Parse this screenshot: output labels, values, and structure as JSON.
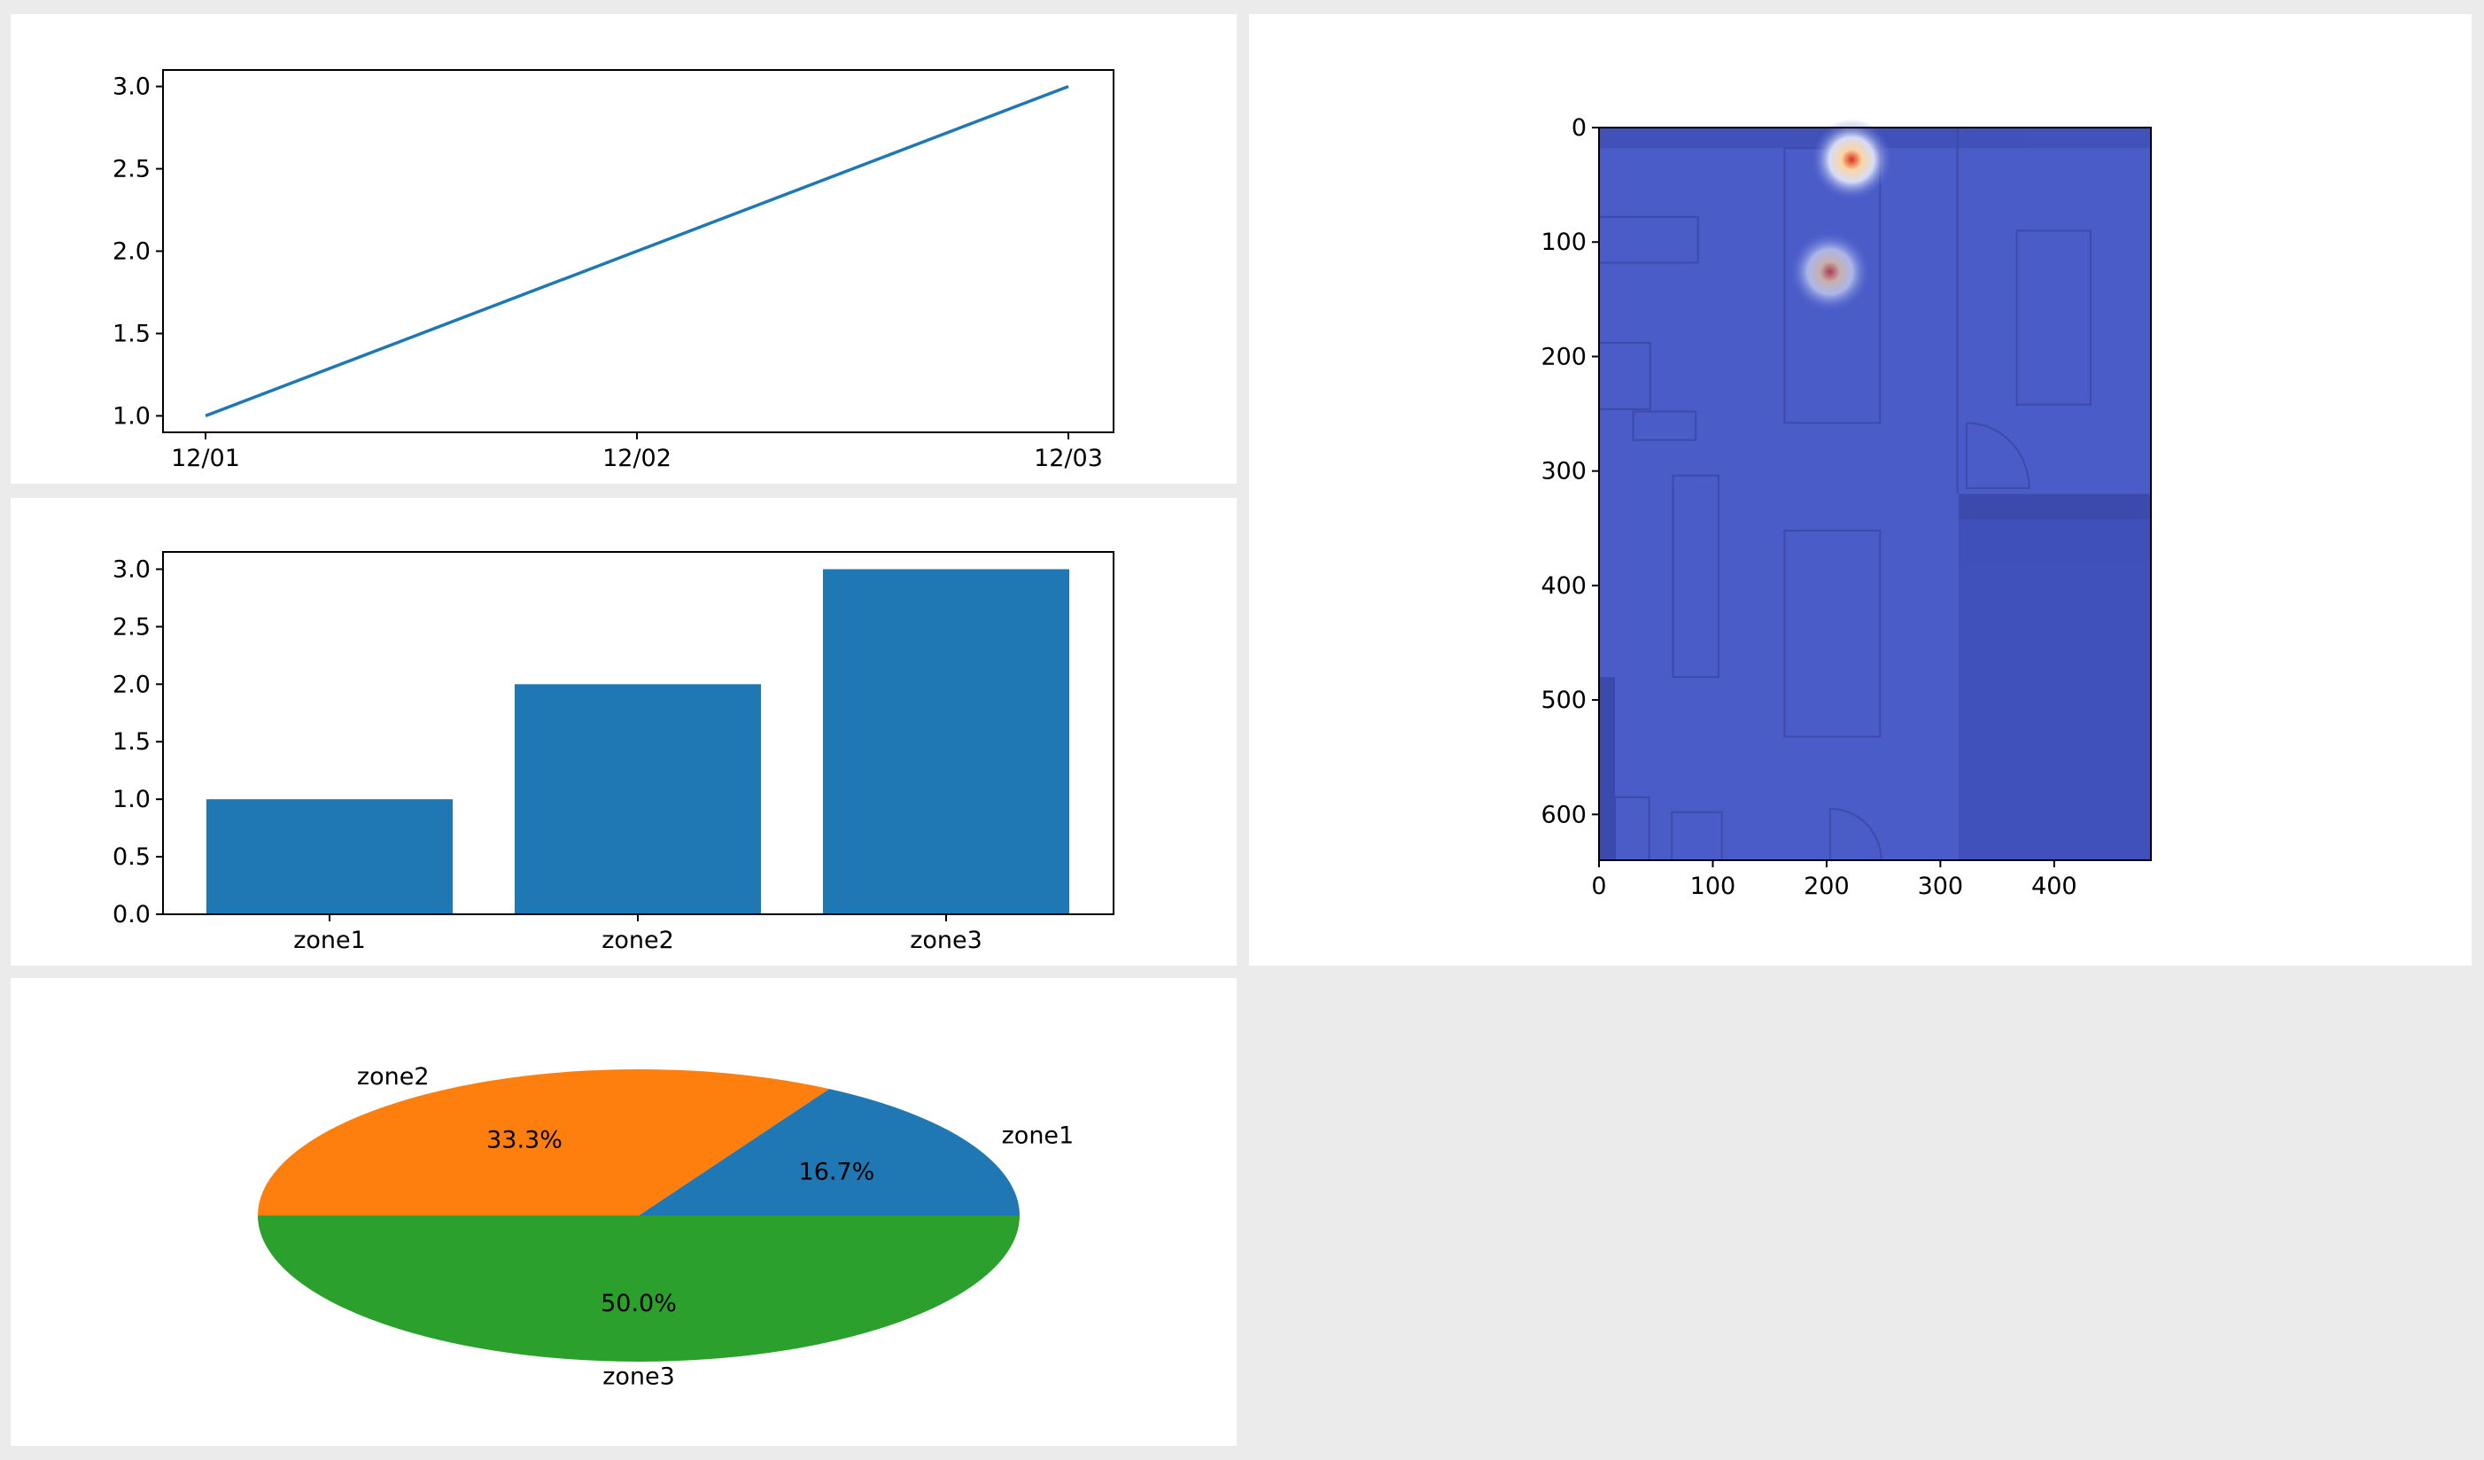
{
  "colors": {
    "page_background": "#ebebeb",
    "panel_background": "#ffffff",
    "series_blue": "#1f77b4",
    "series_orange": "#ff7f0e",
    "series_green": "#2ca02c",
    "heatmap_base": "#4a5cc8",
    "heatmap_hot": "#e8442c"
  },
  "chart_data": [
    {
      "type": "line",
      "x": [
        "12/01",
        "12/02",
        "12/03"
      ],
      "values": [
        1.0,
        2.0,
        3.0
      ],
      "x_tick_labels": [
        "12/01",
        "12/02",
        "12/03"
      ],
      "y_ticks": [
        1.0,
        1.5,
        2.0,
        2.5,
        3.0
      ],
      "y_tick_labels": [
        "1.0",
        "1.5",
        "2.0",
        "2.5",
        "3.0"
      ],
      "ylim": [
        0.9,
        3.1
      ],
      "color": "#1f77b4",
      "grid": false,
      "legend": false
    },
    {
      "type": "bar",
      "categories": [
        "zone1",
        "zone2",
        "zone3"
      ],
      "values": [
        1,
        2,
        3
      ],
      "y_ticks": [
        0.0,
        0.5,
        1.0,
        1.5,
        2.0,
        2.5,
        3.0
      ],
      "y_tick_labels": [
        "0.0",
        "0.5",
        "1.0",
        "1.5",
        "2.0",
        "2.5",
        "3.0"
      ],
      "ylim": [
        0,
        3.15
      ],
      "color": "#1f77b4",
      "grid": false,
      "legend": false
    },
    {
      "type": "pie",
      "labels": [
        "zone1",
        "zone2",
        "zone3"
      ],
      "values": [
        1,
        2,
        3
      ],
      "percent_labels": [
        "16.7%",
        "33.3%",
        "50.0%"
      ],
      "colors": [
        "#1f77b4",
        "#ff7f0e",
        "#2ca02c"
      ],
      "start_angle_deg": 0,
      "legend": false
    },
    {
      "type": "heatmap",
      "x_ticks": [
        0,
        100,
        200,
        300,
        400
      ],
      "x_tick_labels": [
        "0",
        "100",
        "200",
        "300",
        "400"
      ],
      "y_ticks": [
        0,
        100,
        200,
        300,
        400,
        500,
        600
      ],
      "y_tick_labels": [
        "0",
        "100",
        "200",
        "300",
        "400",
        "500",
        "600"
      ],
      "xlim": [
        0,
        485
      ],
      "ylim": [
        640,
        0
      ],
      "background": "floor plan",
      "hotspots": [
        {
          "x": 222,
          "y": 28,
          "intensity": 1.0
        },
        {
          "x": 203,
          "y": 126,
          "intensity": 0.7
        }
      ]
    }
  ]
}
